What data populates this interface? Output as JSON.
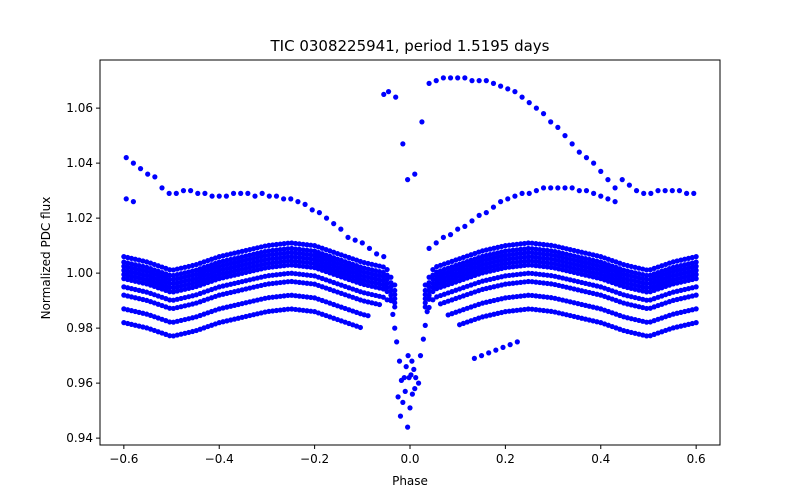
{
  "chart_data": {
    "type": "scatter",
    "title": "TIC 0308225941, period 1.5195 days",
    "xlabel": "Phase",
    "ylabel": "Normalized PDC flux",
    "xlim": [
      -0.65,
      0.65
    ],
    "ylim": [
      0.9375,
      1.0775
    ],
    "xticks": [
      -0.6,
      -0.4,
      -0.2,
      0.0,
      0.2,
      0.4,
      0.6
    ],
    "xtick_labels": [
      "−0.6",
      "−0.4",
      "−0.2",
      "0.0",
      "0.2",
      "0.4",
      "0.6"
    ],
    "yticks": [
      0.94,
      0.96,
      0.98,
      1.0,
      1.02,
      1.04,
      1.06
    ],
    "ytick_labels": [
      "0.94",
      "0.96",
      "0.98",
      "1.00",
      "1.02",
      "1.04",
      "1.06"
    ],
    "grid": false,
    "legend": false,
    "marker_color": "#0000ff",
    "series": [
      {
        "points": [
          [
            -0.595,
            1.042
          ],
          [
            -0.58,
            1.04
          ],
          [
            -0.565,
            1.038
          ],
          [
            -0.55,
            1.036
          ],
          [
            -0.535,
            1.035
          ],
          [
            -0.52,
            1.031
          ],
          [
            -0.505,
            1.029
          ],
          [
            -0.49,
            1.029
          ],
          [
            -0.475,
            1.03
          ],
          [
            -0.46,
            1.03
          ],
          [
            -0.445,
            1.029
          ],
          [
            -0.43,
            1.029
          ],
          [
            -0.415,
            1.028
          ],
          [
            -0.4,
            1.028
          ],
          [
            -0.385,
            1.028
          ],
          [
            -0.37,
            1.029
          ],
          [
            -0.355,
            1.029
          ],
          [
            -0.34,
            1.029
          ],
          [
            -0.325,
            1.028
          ],
          [
            -0.31,
            1.029
          ],
          [
            -0.295,
            1.028
          ],
          [
            -0.28,
            1.028
          ],
          [
            -0.265,
            1.027
          ],
          [
            -0.25,
            1.027
          ],
          [
            -0.235,
            1.026
          ],
          [
            -0.22,
            1.025
          ],
          [
            -0.205,
            1.023
          ],
          [
            -0.19,
            1.022
          ],
          [
            -0.175,
            1.02
          ],
          [
            -0.16,
            1.018
          ],
          [
            -0.145,
            1.016
          ],
          [
            -0.13,
            1.013
          ],
          [
            -0.115,
            1.012
          ],
          [
            -0.1,
            1.011
          ],
          [
            -0.085,
            1.009
          ],
          [
            -0.07,
            1.007
          ],
          [
            -0.055,
            1.006
          ],
          [
            -0.595,
            1.027
          ],
          [
            -0.58,
            1.026
          ],
          [
            -0.055,
            1.065
          ],
          [
            -0.045,
            1.066
          ],
          [
            -0.03,
            1.064
          ],
          [
            -0.015,
            1.047
          ],
          [
            -0.005,
            1.034
          ],
          [
            0.01,
            1.036
          ],
          [
            0.025,
            1.055
          ],
          [
            0.04,
            1.069
          ],
          [
            0.055,
            1.07
          ],
          [
            0.07,
            1.071
          ],
          [
            0.085,
            1.071
          ],
          [
            0.1,
            1.071
          ],
          [
            0.115,
            1.071
          ],
          [
            0.13,
            1.07
          ],
          [
            0.145,
            1.07
          ],
          [
            0.16,
            1.07
          ],
          [
            0.175,
            1.069
          ],
          [
            0.19,
            1.068
          ],
          [
            0.205,
            1.067
          ],
          [
            0.22,
            1.066
          ],
          [
            0.235,
            1.064
          ],
          [
            0.25,
            1.062
          ],
          [
            0.265,
            1.06
          ],
          [
            0.28,
            1.058
          ],
          [
            0.295,
            1.055
          ],
          [
            0.31,
            1.053
          ],
          [
            0.325,
            1.05
          ],
          [
            0.34,
            1.047
          ],
          [
            0.355,
            1.044
          ],
          [
            0.37,
            1.042
          ],
          [
            0.385,
            1.04
          ],
          [
            0.4,
            1.037
          ],
          [
            0.415,
            1.034
          ],
          [
            0.43,
            1.031
          ],
          [
            0.04,
            1.009
          ],
          [
            0.055,
            1.011
          ],
          [
            0.07,
            1.013
          ],
          [
            0.085,
            1.014
          ],
          [
            0.1,
            1.016
          ],
          [
            0.115,
            1.017
          ],
          [
            0.13,
            1.019
          ],
          [
            0.145,
            1.021
          ],
          [
            0.16,
            1.022
          ],
          [
            0.175,
            1.024
          ],
          [
            0.19,
            1.026
          ],
          [
            0.205,
            1.027
          ],
          [
            0.22,
            1.028
          ],
          [
            0.235,
            1.029
          ],
          [
            0.25,
            1.029
          ],
          [
            0.265,
            1.03
          ],
          [
            0.28,
            1.031
          ],
          [
            0.295,
            1.031
          ],
          [
            0.31,
            1.031
          ],
          [
            0.325,
            1.031
          ],
          [
            0.34,
            1.031
          ],
          [
            0.355,
            1.03
          ],
          [
            0.37,
            1.03
          ],
          [
            0.385,
            1.029
          ],
          [
            0.4,
            1.028
          ],
          [
            0.415,
            1.027
          ],
          [
            0.43,
            1.026
          ],
          [
            0.445,
            1.034
          ],
          [
            0.46,
            1.032
          ],
          [
            0.475,
            1.03
          ],
          [
            0.49,
            1.029
          ],
          [
            0.505,
            1.029
          ],
          [
            0.52,
            1.03
          ],
          [
            0.535,
            1.03
          ],
          [
            0.55,
            1.03
          ],
          [
            0.565,
            1.03
          ],
          [
            0.58,
            1.029
          ],
          [
            0.595,
            1.029
          ],
          [
            0.135,
            0.969
          ],
          [
            0.15,
            0.97
          ],
          [
            0.165,
            0.971
          ],
          [
            0.18,
            0.972
          ],
          [
            0.195,
            0.973
          ],
          [
            0.21,
            0.974
          ],
          [
            0.225,
            0.975
          ],
          [
            -0.025,
            0.955
          ],
          [
            -0.02,
            0.948
          ],
          [
            -0.015,
            0.953
          ],
          [
            -0.01,
            0.957
          ],
          [
            -0.005,
            0.944
          ],
          [
            0.0,
            0.951
          ],
          [
            0.005,
            0.956
          ],
          [
            0.01,
            0.958
          ],
          [
            -0.012,
            0.962
          ],
          [
            0.012,
            0.962
          ],
          [
            -0.008,
            0.966
          ],
          [
            0.008,
            0.965
          ],
          [
            -0.004,
            0.97
          ],
          [
            0.004,
            0.968
          ],
          [
            -0.018,
            0.961
          ],
          [
            0.018,
            0.96
          ],
          [
            -0.022,
            0.968
          ],
          [
            0.022,
            0.97
          ],
          [
            -0.028,
            0.975
          ],
          [
            0.028,
            0.976
          ],
          [
            -0.032,
            0.98
          ],
          [
            0.032,
            0.981
          ],
          [
            -0.036,
            0.985
          ],
          [
            0.036,
            0.986
          ],
          [
            -0.04,
            0.99
          ],
          [
            0.04,
            0.991
          ],
          [
            -0.002,
            0.962
          ],
          [
            0.002,
            0.963
          ]
        ]
      }
    ],
    "bands": [
      {
        "dy": 0.005,
        "skip": [
          [
            -0.025,
            0.025
          ]
        ]
      },
      {
        "dy": 0.003,
        "skip": [
          [
            -0.025,
            0.025
          ]
        ]
      },
      {
        "dy": 0.0015,
        "skip": [
          [
            -0.025,
            0.025
          ]
        ]
      },
      {
        "dy": 0.0,
        "skip": [
          [
            -0.025,
            0.025
          ]
        ]
      },
      {
        "dy": -0.0015,
        "skip": [
          [
            -0.025,
            0.025
          ]
        ]
      },
      {
        "dy": -0.003,
        "skip": [
          [
            -0.025,
            0.025
          ]
        ]
      },
      {
        "dy": -0.006,
        "skip": [
          [
            -0.04,
            0.04
          ]
        ]
      },
      {
        "dy": -0.009,
        "skip": [
          [
            -0.06,
            0.06
          ]
        ]
      },
      {
        "dy": -0.014,
        "skip": [
          [
            -0.08,
            0.08
          ]
        ]
      },
      {
        "dy": -0.019,
        "skip": [
          [
            -0.1,
            0.1
          ]
        ]
      }
    ],
    "band_base": [
      [
        -0.6,
        1.001
      ],
      [
        -0.55,
        0.999
      ],
      [
        -0.5,
        0.996
      ],
      [
        -0.45,
        0.998
      ],
      [
        -0.4,
        1.001
      ],
      [
        -0.35,
        1.003
      ],
      [
        -0.3,
        1.005
      ],
      [
        -0.25,
        1.006
      ],
      [
        -0.2,
        1.005
      ],
      [
        -0.15,
        1.002
      ],
      [
        -0.1,
        0.999
      ],
      [
        -0.05,
        0.997
      ],
      [
        -0.03,
        0.99
      ],
      [
        0.03,
        0.99
      ],
      [
        0.05,
        0.997
      ],
      [
        0.1,
        1.0
      ],
      [
        0.15,
        1.003
      ],
      [
        0.2,
        1.005
      ],
      [
        0.25,
        1.006
      ],
      [
        0.3,
        1.005
      ],
      [
        0.35,
        1.003
      ],
      [
        0.4,
        1.001
      ],
      [
        0.45,
        0.998
      ],
      [
        0.5,
        0.996
      ],
      [
        0.55,
        0.999
      ],
      [
        0.6,
        1.001
      ]
    ],
    "band_step": 0.008
  }
}
